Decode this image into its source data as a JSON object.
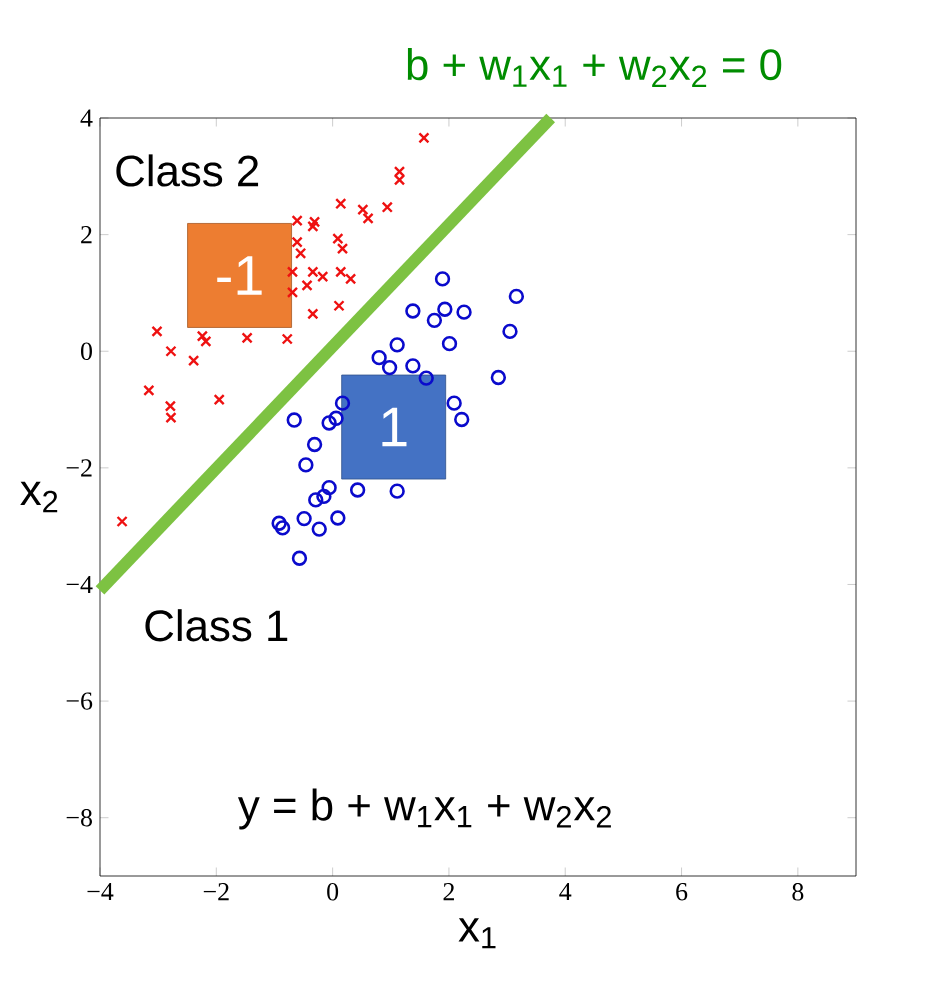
{
  "chart_data": {
    "type": "scatter",
    "title": "b + w$_{1}$x$_{1}$ + w$_{2}$x$_{2}$ = 0",
    "xlabel": "x$_{1}$",
    "ylabel": "x$_{2}$",
    "xlim": [
      -4,
      9
    ],
    "ylim": [
      -9,
      4
    ],
    "xticks": [
      {
        "value": -4,
        "label": "−4"
      },
      {
        "value": -2,
        "label": "−2"
      },
      0,
      2,
      4,
      6,
      8
    ],
    "yticks": [
      {
        "value": -8,
        "label": "−8"
      },
      {
        "value": -6,
        "label": "−6"
      },
      {
        "value": -4,
        "label": "−4"
      },
      {
        "value": -2,
        "label": "−2"
      },
      0,
      2,
      4
    ],
    "grid": false,
    "series": [
      {
        "marker": "cross",
        "color": "#ee1111",
        "x": [
          1.57,
          1.15,
          1.15,
          0.14,
          0.52,
          0.61,
          0.94,
          -0.61,
          -0.34,
          -0.31,
          0.09,
          0.17,
          -0.61,
          -0.55,
          -0.69,
          -0.34,
          -0.17,
          0.14,
          0.31,
          -0.44,
          -0.69,
          -0.34,
          0.11,
          -3.02,
          -2.78,
          -2.39,
          -2.24,
          -2.18,
          -1.47,
          -0.78,
          -3.16,
          -2.79,
          -2.78,
          -1.95,
          -3.62
        ],
        "values": [
          3.66,
          3.08,
          2.94,
          2.53,
          2.43,
          2.28,
          2.47,
          2.24,
          2.14,
          2.22,
          1.93,
          1.76,
          1.87,
          1.68,
          1.36,
          1.36,
          1.28,
          1.36,
          1.24,
          1.13,
          1.01,
          0.64,
          0.78,
          0.34,
          0,
          -0.16,
          0.26,
          0.17,
          0.23,
          0.21,
          -0.67,
          -0.94,
          -1.14,
          -0.83,
          -2.92
        ]
      },
      {
        "marker": "circle",
        "color": "#0a0acc",
        "x": [
          1.89,
          3.16,
          1.38,
          1.75,
          1.93,
          2.26,
          3.05,
          2.01,
          1.11,
          0.8,
          0.98,
          1.38,
          1.61,
          2.85,
          0.17,
          2.09,
          2.22,
          -0.66,
          -0.06,
          0.06,
          -0.31,
          -0.46,
          -0.06,
          0.43,
          1.11,
          -0.29,
          -0.15,
          0.09,
          -0.92,
          -0.86,
          -0.49,
          -0.23,
          -0.57
        ],
        "values": [
          1.24,
          0.94,
          0.69,
          0.53,
          0.72,
          0.67,
          0.34,
          0.13,
          0.11,
          -0.11,
          -0.28,
          -0.25,
          -0.46,
          -0.45,
          -0.89,
          -0.89,
          -1.17,
          -1.18,
          -1.23,
          -1.15,
          -1.6,
          -1.95,
          -2.34,
          -2.38,
          -2.4,
          -2.55,
          -2.49,
          -2.86,
          -2.95,
          -3.03,
          -2.87,
          -3.05,
          -3.55
        ]
      },
      {
        "type": "line",
        "marker": "none",
        "line_style": "solid",
        "color": "#7dc242",
        "x": [
          -4,
          3.75
        ],
        "values": [
          -4.1,
          4
        ]
      }
    ],
    "annotations": [
      "Class 2",
      "Class 1",
      "y = b + w$_{1}$x$_{1}$ + w$_{2}$x$_{2}$",
      "-1",
      "1"
    ]
  }
}
